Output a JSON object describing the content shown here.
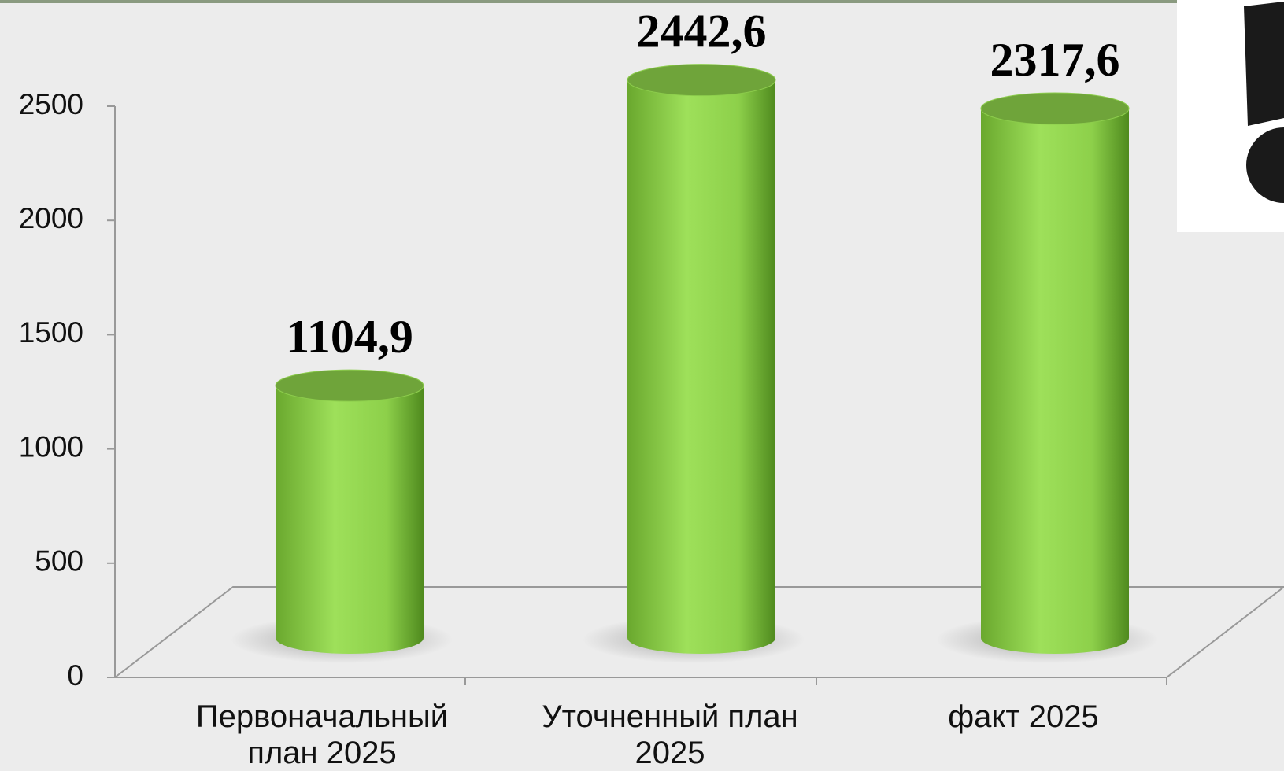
{
  "chart_data": {
    "type": "bar",
    "categories": [
      "Первоначальный план 2025",
      "Уточненный план 2025",
      "факт 2025"
    ],
    "values": [
      1104.9,
      2442.6,
      2317.6
    ],
    "value_labels": [
      "1104,9",
      "2442,6",
      "2317,6"
    ],
    "color": "#8ed14b",
    "ylim": [
      0,
      2500
    ],
    "yticks": [
      0,
      500,
      1000,
      1500,
      2000,
      2500
    ]
  }
}
